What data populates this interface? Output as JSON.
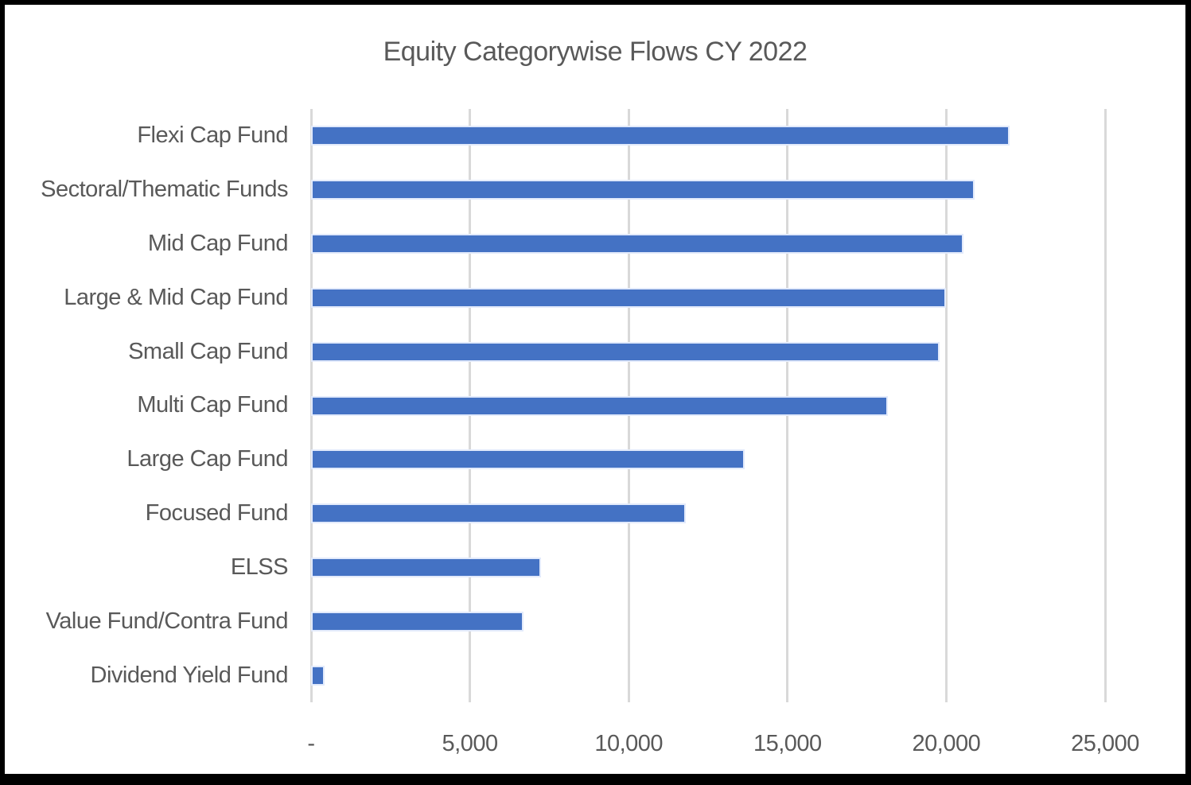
{
  "chart_data": {
    "type": "bar",
    "orientation": "horizontal",
    "title": "Equity Categorywise Flows CY 2022",
    "categories": [
      "Flexi Cap Fund",
      "Sectoral/Thematic Funds",
      "Mid Cap Fund",
      "Large & Mid Cap Fund",
      "Small Cap Fund",
      "Multi Cap Fund",
      "Large Cap Fund",
      "Focused Fund",
      "ELSS",
      "Value Fund/Contra Fund",
      "Dividend Yield Fund"
    ],
    "values": [
      22000,
      20900,
      20550,
      20000,
      19800,
      18150,
      13650,
      11800,
      7250,
      6700,
      420
    ],
    "x_axis": {
      "range": [
        0,
        25000
      ],
      "ticks": [
        0,
        5000,
        10000,
        15000,
        20000,
        25000
      ],
      "tick_labels": [
        "-",
        "5,000",
        "10,000",
        "15,000",
        "20,000",
        "25,000"
      ]
    },
    "grid": true,
    "legend": false,
    "colors": {
      "bar": "#4472C4",
      "bar_outline": "#e2eafb",
      "gridline": "#d9d9d9",
      "text": "#595959",
      "frame_border": "#000000",
      "background": "#ffffff"
    }
  }
}
